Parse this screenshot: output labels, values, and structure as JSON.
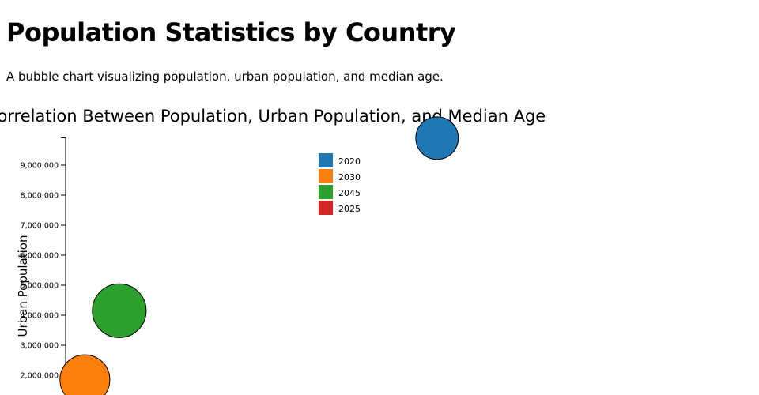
{
  "page": {
    "title": "Population Statistics by Country",
    "description": "A bubble chart visualizing population, urban population, and median age."
  },
  "chart_data": {
    "type": "scatter",
    "title": "Correlation Between Population, Urban Population, and Median Age",
    "xlabel": "",
    "ylabel": "Urban Population",
    "ylim": [
      1000000,
      10000000
    ],
    "grid": false,
    "legend_position": "top-center",
    "yticks": [
      {
        "value": 2000000,
        "label": "2,000,000"
      },
      {
        "value": 3000000,
        "label": "3,000,000"
      },
      {
        "value": 4000000,
        "label": "4,000,000"
      },
      {
        "value": 5000000,
        "label": "5,000,000"
      },
      {
        "value": 6000000,
        "label": "6,000,000"
      },
      {
        "value": 7000000,
        "label": "7,000,000"
      },
      {
        "value": 8000000,
        "label": "8,000,000"
      },
      {
        "value": 9000000,
        "label": "9,000,000"
      }
    ],
    "legend": [
      {
        "label": "2020",
        "color": "#1f77b4"
      },
      {
        "label": "2030",
        "color": "#ff7f0e"
      },
      {
        "label": "2045",
        "color": "#2ca02c"
      },
      {
        "label": "2025",
        "color": "#d62728"
      }
    ],
    "points": [
      {
        "series": "2020",
        "x_rel": 0.54,
        "urban_population": 9900000,
        "median_age_rel": 0.33,
        "color": "#1f77b4"
      },
      {
        "series": "2045",
        "x_rel": 0.078,
        "urban_population": 4150000,
        "median_age_rel": 0.67,
        "color": "#2ca02c"
      },
      {
        "series": "2030",
        "x_rel": 0.028,
        "urban_population": 1850000,
        "median_age_rel": 0.55,
        "color": "#ff7f0e"
      }
    ]
  }
}
